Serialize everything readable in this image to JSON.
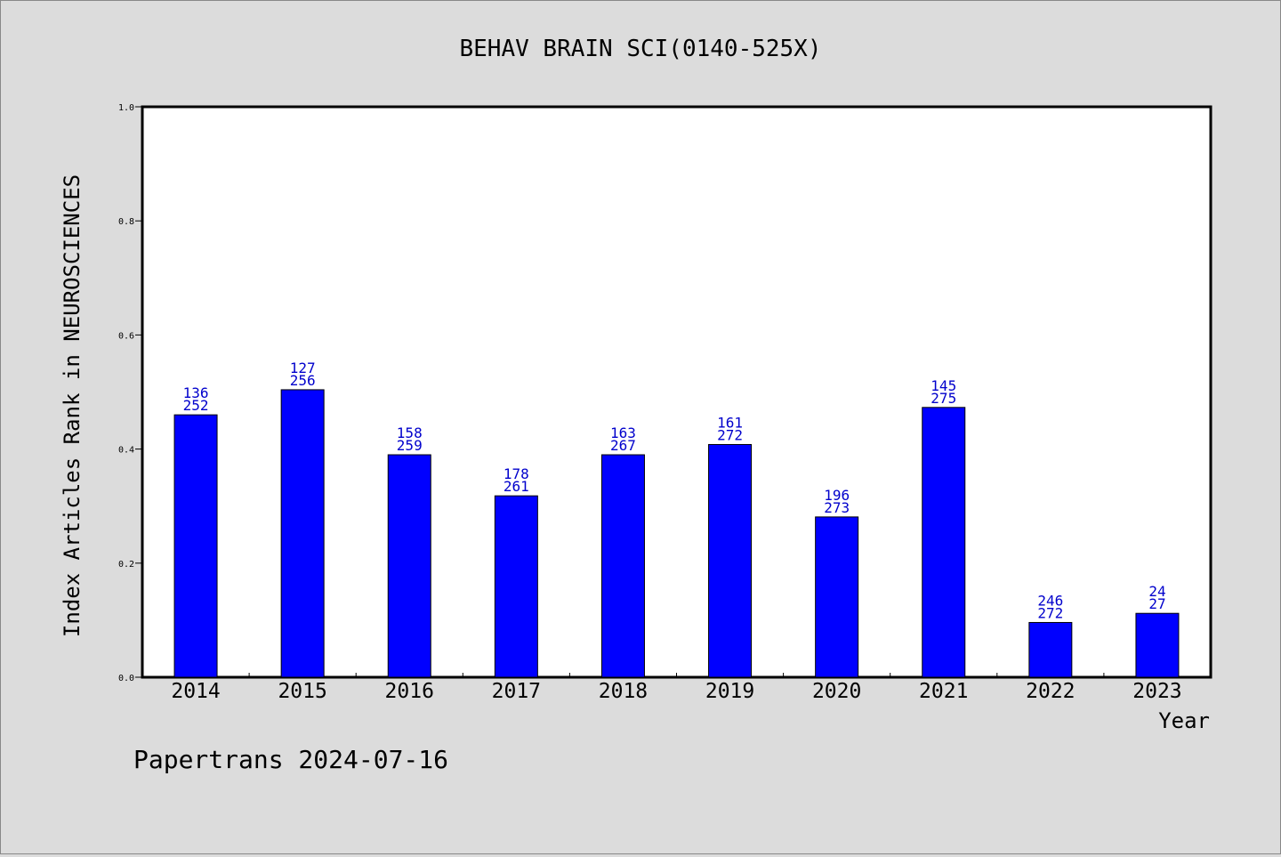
{
  "chart_data": {
    "type": "bar",
    "title": "BEHAV BRAIN SCI(0140-525X)",
    "xlabel": "Year",
    "ylabel": "Index Articles Rank in NEUROSCIENCES",
    "categories": [
      "2014",
      "2015",
      "2016",
      "2017",
      "2018",
      "2019",
      "2020",
      "2021",
      "2022",
      "2023"
    ],
    "values": [
      0.46,
      0.504,
      0.39,
      0.318,
      0.39,
      0.408,
      0.281,
      0.473,
      0.096,
      0.112
    ],
    "rank_labels": [
      "136",
      "127",
      "158",
      "178",
      "163",
      "161",
      "196",
      "145",
      "246",
      "24"
    ],
    "total_labels": [
      "252",
      "256",
      "259",
      "261",
      "267",
      "272",
      "273",
      "275",
      "272",
      "27"
    ],
    "ylim": [
      0,
      1.0
    ],
    "yticks": [
      0.0,
      0.2,
      0.4,
      0.6,
      0.8,
      1.0
    ],
    "ytick_labels": [
      "0.0",
      "0.2",
      "0.4",
      "0.6",
      "0.8",
      "1.0"
    ],
    "grid": false,
    "legend": "none",
    "colors": {
      "bar": "#0000ff",
      "bar_label": "#0000cc",
      "background": "#dcdcdc",
      "plot_background": "#ffffff"
    }
  },
  "footer": {
    "text": "Papertrans 2024-07-16"
  }
}
